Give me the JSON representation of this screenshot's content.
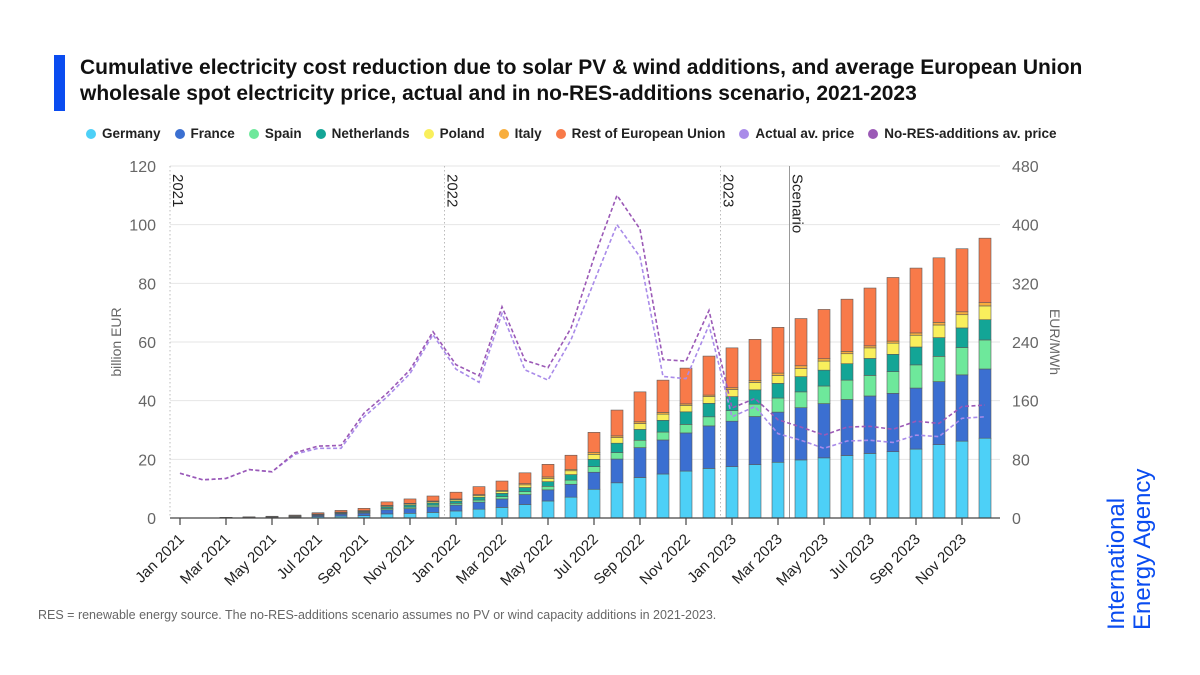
{
  "title": "Cumulative electricity cost reduction due to solar PV & wind additions, and average European Union wholesale spot electricity price, actual and in no-RES-additions scenario, 2021-2023",
  "footnote": "RES = renewable energy source. The no-RES-additions scenario assumes no PV or wind capacity additions in 2021-2023.",
  "logo": {
    "line1": "International",
    "line2": "Energy Agency",
    "color": "#0a4cf0"
  },
  "chart_data": {
    "type": "bar",
    "stacked": true,
    "title": "Cumulative electricity cost reduction due to solar PV & wind additions, and average European Union wholesale spot electricity price, actual and in no-RES-additions scenario, 2021-2023",
    "ylabel": "billion EUR",
    "y2label": "EUR/MWh",
    "ylim": [
      0,
      120
    ],
    "y2lim": [
      0,
      480
    ],
    "yticks": [
      0,
      20,
      40,
      60,
      80,
      100,
      120
    ],
    "y2ticks": [
      0,
      80,
      160,
      240,
      320,
      400,
      480
    ],
    "grid": true,
    "legend_position": "top",
    "categories": [
      "Jan 2021",
      "Feb 2021",
      "Mar 2021",
      "Apr 2021",
      "May 2021",
      "Jun 2021",
      "Jul 2021",
      "Aug 2021",
      "Sep 2021",
      "Oct 2021",
      "Nov 2021",
      "Dec 2021",
      "Jan 2022",
      "Feb 2022",
      "Mar 2022",
      "Apr 2022",
      "May 2022",
      "Jun 2022",
      "Jul 2022",
      "Aug 2022",
      "Sep 2022",
      "Oct 2022",
      "Nov 2022",
      "Dec 2022",
      "Jan 2023",
      "Feb 2023",
      "Mar 2023",
      "Apr 2023",
      "May 2023",
      "Jun 2023",
      "Jul 2023",
      "Aug 2023",
      "Sep 2023",
      "Oct 2023",
      "Nov 2023",
      "Dec 2023"
    ],
    "xtick_labels": [
      "Jan 2021",
      "Mar 2021",
      "May 2021",
      "Jul 2021",
      "Sep 2021",
      "Nov 2021",
      "Jan 2022",
      "Mar 2022",
      "May 2022",
      "Jul 2022",
      "Sep 2022",
      "Nov 2022",
      "Jan 2023",
      "Mar 2023",
      "May 2023",
      "Jul 2023",
      "Sep 2023",
      "Nov 2023"
    ],
    "annotations": [
      {
        "text": "2021",
        "at": "Jan 2021",
        "style": "dotted"
      },
      {
        "text": "2022",
        "at": "Jan 2022",
        "style": "dotted"
      },
      {
        "text": "2023",
        "at": "Jan 2023",
        "style": "dotted"
      },
      {
        "text": "Scenario",
        "at": "Apr 2023",
        "style": "solid"
      }
    ],
    "series": [
      {
        "name": "Germany",
        "color": "#4dd0f7",
        "values": [
          0,
          0,
          0.05,
          0.1,
          0.15,
          0.25,
          0.45,
          0.65,
          0.8,
          1.4,
          1.6,
          1.9,
          2.4,
          3.0,
          3.6,
          4.6,
          5.8,
          7.1,
          9.8,
          12.0,
          13.8,
          15.0,
          16.0,
          16.9,
          17.5,
          18.2,
          19.0,
          19.8,
          20.5,
          21.3,
          22.0,
          22.6,
          23.5,
          25.0,
          26.2,
          27.2
        ]
      },
      {
        "name": "France",
        "color": "#3b6fd1",
        "values": [
          0,
          0,
          0.05,
          0.1,
          0.15,
          0.25,
          0.45,
          0.65,
          0.85,
          1.4,
          1.6,
          1.9,
          2.0,
          2.4,
          2.9,
          3.4,
          3.8,
          4.4,
          5.8,
          8.1,
          10.2,
          11.6,
          13.0,
          14.5,
          15.5,
          16.4,
          17.1,
          17.8,
          18.5,
          19.1,
          19.6,
          19.9,
          20.8,
          21.5,
          22.6,
          23.6
        ]
      },
      {
        "name": "Spain",
        "color": "#6ee89b",
        "values": [
          0,
          0,
          0.02,
          0.03,
          0.05,
          0.08,
          0.14,
          0.21,
          0.26,
          0.45,
          0.5,
          0.6,
          0.6,
          0.7,
          0.8,
          1.0,
          1.2,
          1.4,
          1.9,
          2.2,
          2.5,
          2.7,
          2.9,
          3.1,
          3.6,
          4.2,
          4.8,
          5.4,
          6.0,
          6.6,
          7.0,
          7.4,
          7.9,
          8.6,
          9.3,
          9.9
        ]
      },
      {
        "name": "Netherlands",
        "color": "#13a596",
        "values": [
          0,
          0,
          0.02,
          0.04,
          0.06,
          0.1,
          0.18,
          0.26,
          0.33,
          0.55,
          0.7,
          0.75,
          0.8,
          1.0,
          1.1,
          1.4,
          1.6,
          1.9,
          2.5,
          3.2,
          3.7,
          4.0,
          4.3,
          4.6,
          4.8,
          4.9,
          5.0,
          5.2,
          5.4,
          5.6,
          5.8,
          5.9,
          6.1,
          6.4,
          6.7,
          6.9
        ]
      },
      {
        "name": "Poland",
        "color": "#f9ef5c",
        "values": [
          0,
          0,
          0.01,
          0.03,
          0.04,
          0.06,
          0.11,
          0.16,
          0.2,
          0.33,
          0.4,
          0.45,
          0.5,
          0.6,
          0.7,
          0.9,
          1.1,
          1.3,
          1.7,
          1.9,
          2.0,
          2.1,
          2.2,
          2.3,
          2.4,
          2.5,
          2.7,
          2.8,
          3.1,
          3.4,
          3.6,
          3.8,
          4.0,
          4.3,
          4.5,
          4.7
        ]
      },
      {
        "name": "Italy",
        "color": "#f8ae3d",
        "values": [
          0,
          0,
          0.01,
          0.01,
          0.02,
          0.03,
          0.05,
          0.08,
          0.1,
          0.15,
          0.2,
          0.2,
          0.2,
          0.3,
          0.3,
          0.4,
          0.5,
          0.5,
          0.7,
          0.6,
          0.6,
          0.6,
          0.5,
          0.5,
          0.6,
          0.7,
          0.8,
          0.9,
          0.8,
          0.8,
          0.7,
          0.7,
          0.8,
          0.9,
          1.0,
          1.1
        ]
      },
      {
        "name": "Rest of European Union",
        "color": "#f87a49",
        "values": [
          0,
          0,
          0.04,
          0.09,
          0.13,
          0.23,
          0.42,
          0.59,
          0.76,
          1.22,
          1.5,
          1.7,
          2.3,
          2.7,
          3.2,
          3.7,
          4.3,
          4.8,
          6.8,
          8.8,
          10.2,
          11.0,
          12.2,
          13.3,
          13.6,
          14.0,
          15.6,
          16.1,
          16.8,
          17.8,
          19.7,
          21.7,
          22.1,
          22.0,
          21.5,
          22.0
        ]
      }
    ],
    "line_series": [
      {
        "name": "Actual av. price",
        "color": "#a98be9",
        "axis": "right",
        "style": "dashed",
        "values": [
          61,
          52,
          54,
          66,
          63,
          87,
          95,
          95,
          138,
          165,
          197,
          250,
          203,
          185,
          279,
          202,
          188,
          243,
          322,
          400,
          356,
          193,
          190,
          263,
          138,
          152,
          115,
          106,
          95,
          105,
          106,
          103,
          113,
          111,
          136,
          138
        ]
      },
      {
        "name": "No-RES-additions av. price",
        "color": "#9b59b6",
        "axis": "right",
        "style": "dashed",
        "values": [
          61,
          52,
          54,
          66,
          63,
          89,
          98,
          99,
          143,
          170,
          202,
          254,
          209,
          194,
          288,
          215,
          205,
          259,
          355,
          440,
          394,
          216,
          214,
          283,
          150,
          163,
          134,
          124,
          113,
          124,
          125,
          121,
          132,
          129,
          152,
          154
        ]
      }
    ]
  }
}
